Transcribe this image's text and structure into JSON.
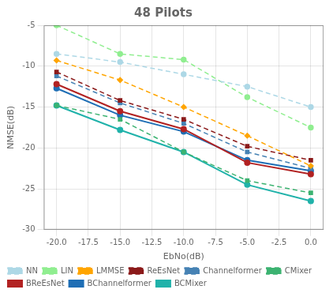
{
  "chart_data": {
    "type": "line",
    "title": "48 Pilots",
    "xlabel": "EbNo(dB)",
    "ylabel": "NMSE(dB)",
    "x": [
      -20,
      -15,
      -10,
      -5,
      0
    ],
    "xlim": [
      -21.0,
      1.0
    ],
    "ylim": [
      -30,
      -5
    ],
    "xticks": [
      {
        "value": -20.0,
        "label": "-20.0"
      },
      {
        "value": -17.5,
        "label": "-17.5"
      },
      {
        "value": -15.0,
        "label": "-15.0"
      },
      {
        "value": -12.5,
        "label": "-12.5"
      },
      {
        "value": -10.0,
        "label": "-10.0"
      },
      {
        "value": -7.5,
        "label": "-7.5"
      },
      {
        "value": -5.0,
        "label": "-5.0"
      },
      {
        "value": -2.5,
        "label": "-2.5"
      },
      {
        "value": 0.0,
        "label": "0.0"
      }
    ],
    "yticks": [
      -5,
      -10,
      -15,
      -20,
      -25,
      -30
    ],
    "grid": true,
    "legend": "lower left",
    "series": [
      {
        "name": "NN",
        "color": "#add8e6",
        "line_style": "dashed",
        "marker": "circle",
        "values": [
          -8.5,
          -9.5,
          -11.0,
          -12.5,
          -15.0
        ]
      },
      {
        "name": "LIN",
        "color": "#90ee90",
        "line_style": "dashed",
        "marker": "circle",
        "values": [
          -5.0,
          -8.5,
          -9.2,
          -13.8,
          -17.5
        ]
      },
      {
        "name": "LMMSE",
        "color": "#ffa500",
        "line_style": "dashed",
        "marker": "diamond",
        "values": [
          -9.3,
          -11.7,
          -15.0,
          -18.5,
          -22.2
        ]
      },
      {
        "name": "ReEsNet",
        "color": "#8b1a1a",
        "line_style": "dashed",
        "marker": "square",
        "values": [
          -10.7,
          -14.2,
          -16.5,
          -19.8,
          -21.5
        ]
      },
      {
        "name": "Channelformer",
        "color": "#4682b4",
        "line_style": "dashed",
        "marker": "square",
        "values": [
          -11.2,
          -14.5,
          -17.0,
          -20.5,
          -22.5
        ]
      },
      {
        "name": "CMixer",
        "color": "#3cb371",
        "line_style": "dashed",
        "marker": "square",
        "values": [
          -14.8,
          -16.5,
          -20.5,
          -24.0,
          -25.5
        ]
      },
      {
        "name": "BReEsNet",
        "color": "#b22222",
        "line_style": "solid",
        "marker": "circle",
        "values": [
          -12.2,
          -15.5,
          -17.7,
          -21.8,
          -23.2
        ]
      },
      {
        "name": "BChannelformer",
        "color": "#1e6eb5",
        "line_style": "solid",
        "marker": "circle",
        "values": [
          -12.7,
          -16.0,
          -18.0,
          -21.5,
          -22.8
        ]
      },
      {
        "name": "BCMixer",
        "color": "#20b2aa",
        "line_style": "solid",
        "marker": "circle",
        "values": [
          -14.8,
          -17.8,
          -20.5,
          -24.5,
          -26.5
        ]
      }
    ]
  }
}
